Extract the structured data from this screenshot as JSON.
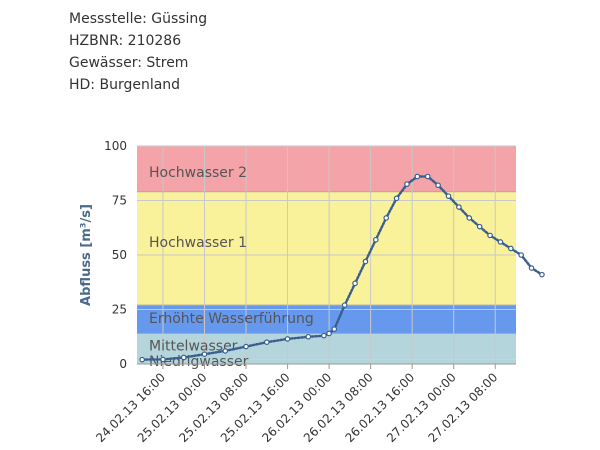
{
  "station": {
    "messstelle": "Messstelle: Güssing",
    "hzbnr": "HZBNR: 210286",
    "gewaesser": "Gewässer: Strem",
    "hd": "HD: Burgenland"
  },
  "chart_data": {
    "type": "line",
    "title": "",
    "xlabel": "",
    "ylabel": "Abfluss [m³/s]",
    "ylim": [
      0,
      100
    ],
    "yticks": [
      "0",
      "25",
      "50",
      "75",
      "100"
    ],
    "xlim": [
      "24.02.13 11:00",
      "27.02.13 12:00"
    ],
    "xticks": [
      "24.02.13 16:00",
      "25.02.13 00:00",
      "25.02.13 08:00",
      "25.02.13 16:00",
      "26.02.13 00:00",
      "26.02.13 08:00",
      "26.02.13 16:00",
      "27.02.13 00:00",
      "27.02.13 08:00"
    ],
    "zones": [
      {
        "label": "Niedrigwasser",
        "from": 0,
        "to": 2,
        "color": "#b5d5dc"
      },
      {
        "label": "Mittelwasser",
        "from": 2,
        "to": 14,
        "color": "#b5d5dc"
      },
      {
        "label": "Erhöhte Wasserführung",
        "from": 14,
        "to": 27,
        "color": "#6699ee"
      },
      {
        "label": "Hochwasser 1",
        "from": 27,
        "to": 79,
        "color": "#faf29a"
      },
      {
        "label": "Hochwasser 2",
        "from": 79,
        "to": 100,
        "color": "#f4a3a8"
      }
    ],
    "grid": true,
    "series": [
      {
        "color": "#3a5f8f",
        "points": [
          {
            "x": "24.02.13 12:00",
            "y": 2.0
          },
          {
            "x": "24.02.13 16:00",
            "y": 2.1
          },
          {
            "x": "24.02.13 20:00",
            "y": 3.0
          },
          {
            "x": "25.02.13 00:00",
            "y": 4.5
          },
          {
            "x": "25.02.13 04:00",
            "y": 6.0
          },
          {
            "x": "25.02.13 08:00",
            "y": 8.0
          },
          {
            "x": "25.02.13 12:00",
            "y": 10.0
          },
          {
            "x": "25.02.13 16:00",
            "y": 11.5
          },
          {
            "x": "25.02.13 20:00",
            "y": 12.5
          },
          {
            "x": "25.02.13 23:00",
            "y": 13.0
          },
          {
            "x": "26.02.13 00:00",
            "y": 14.0
          },
          {
            "x": "26.02.13 01:00",
            "y": 16.0
          },
          {
            "x": "26.02.13 03:00",
            "y": 27.0
          },
          {
            "x": "26.02.13 05:00",
            "y": 37.0
          },
          {
            "x": "26.02.13 07:00",
            "y": 47.0
          },
          {
            "x": "26.02.13 09:00",
            "y": 57.0
          },
          {
            "x": "26.02.13 11:00",
            "y": 67.0
          },
          {
            "x": "26.02.13 13:00",
            "y": 76.0
          },
          {
            "x": "26.02.13 15:00",
            "y": 82.5
          },
          {
            "x": "26.02.13 17:00",
            "y": 86.0
          },
          {
            "x": "26.02.13 19:00",
            "y": 86.0
          },
          {
            "x": "26.02.13 21:00",
            "y": 82.0
          },
          {
            "x": "26.02.13 23:00",
            "y": 77.0
          },
          {
            "x": "27.02.13 01:00",
            "y": 72.0
          },
          {
            "x": "27.02.13 03:00",
            "y": 67.0
          },
          {
            "x": "27.02.13 05:00",
            "y": 63.0
          },
          {
            "x": "27.02.13 07:00",
            "y": 59.0
          },
          {
            "x": "27.02.13 09:00",
            "y": 56.0
          },
          {
            "x": "27.02.13 11:00",
            "y": 53.0
          },
          {
            "x": "27.02.13 13:00",
            "y": 50.0
          },
          {
            "x": "27.02.13 15:00",
            "y": 44.0
          },
          {
            "x": "27.02.13 17:00",
            "y": 41.0
          }
        ]
      }
    ]
  }
}
